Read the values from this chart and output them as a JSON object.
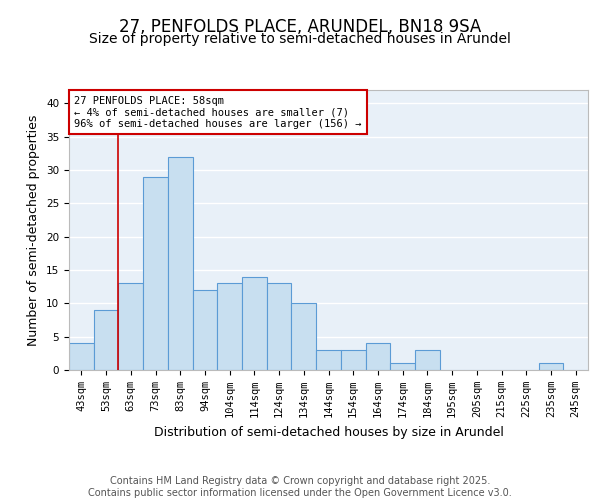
{
  "title1": "27, PENFOLDS PLACE, ARUNDEL, BN18 9SA",
  "title2": "Size of property relative to semi-detached houses in Arundel",
  "xlabel": "Distribution of semi-detached houses by size in Arundel",
  "ylabel": "Number of semi-detached properties",
  "categories": [
    "43sqm",
    "53sqm",
    "63sqm",
    "73sqm",
    "83sqm",
    "94sqm",
    "104sqm",
    "114sqm",
    "124sqm",
    "134sqm",
    "144sqm",
    "154sqm",
    "164sqm",
    "174sqm",
    "184sqm",
    "195sqm",
    "205sqm",
    "215sqm",
    "225sqm",
    "235sqm",
    "245sqm"
  ],
  "values": [
    4,
    9,
    13,
    29,
    32,
    12,
    13,
    14,
    13,
    10,
    3,
    3,
    4,
    1,
    3,
    0,
    0,
    0,
    0,
    1,
    0
  ],
  "bar_color": "#c8dff0",
  "bar_edge_color": "#5b9bd5",
  "annotation_box_text": "27 PENFOLDS PLACE: 58sqm\n← 4% of semi-detached houses are smaller (7)\n96% of semi-detached houses are larger (156) →",
  "annotation_box_color": "#cc0000",
  "annotation_box_fill": "#ffffff",
  "red_line_x": 1.5,
  "ylim": [
    0,
    42
  ],
  "yticks": [
    0,
    5,
    10,
    15,
    20,
    25,
    30,
    35,
    40
  ],
  "footer_text": "Contains HM Land Registry data © Crown copyright and database right 2025.\nContains public sector information licensed under the Open Government Licence v3.0.",
  "background_color": "#ffffff",
  "plot_bg_color": "#e8f0f8",
  "grid_color": "#ffffff",
  "title_fontsize": 12,
  "subtitle_fontsize": 10,
  "axis_label_fontsize": 9,
  "tick_fontsize": 7.5,
  "annotation_fontsize": 7.5,
  "footer_fontsize": 7
}
